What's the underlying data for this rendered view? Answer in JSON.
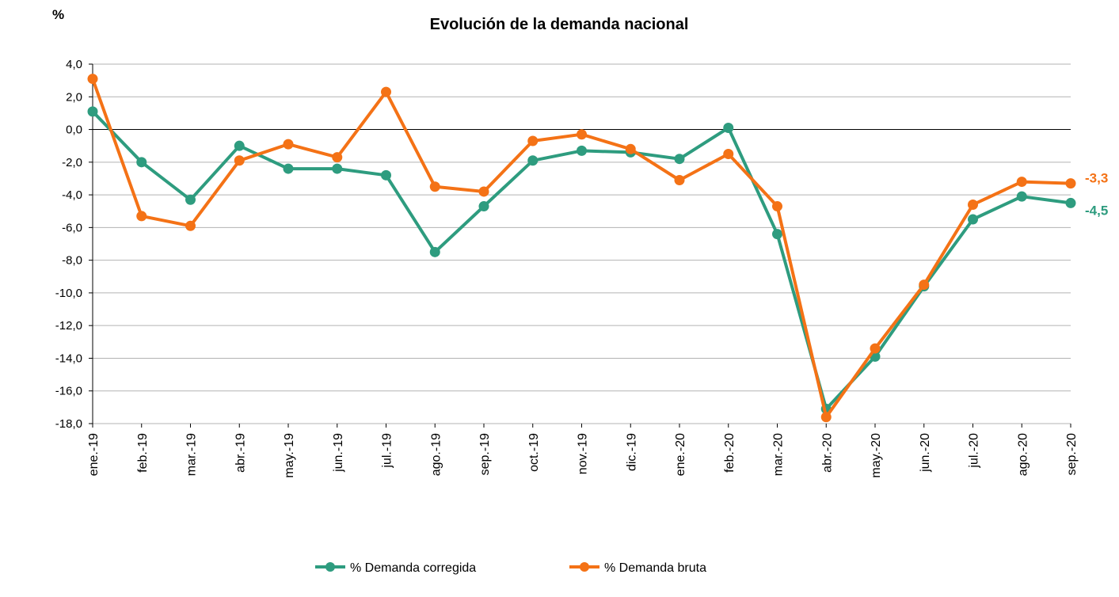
{
  "chart_data": {
    "type": "line",
    "title": "Evolución de la demanda nacional",
    "ylabel": "%",
    "xlabel": "",
    "ylim": [
      -18,
      4
    ],
    "ystep": 2,
    "ytick_labels": [
      "4,0",
      "2,0",
      "0,0",
      "-2,0",
      "-4,0",
      "-6,0",
      "-8,0",
      "-10,0",
      "-12,0",
      "-14,0",
      "-16,0",
      "-18,0"
    ],
    "categories": [
      "ene.-19",
      "feb.-19",
      "mar.-19",
      "abr.-19",
      "may.-19",
      "jun.-19",
      "jul.-19",
      "ago.-19",
      "sep.-19",
      "oct.-19",
      "nov.-19",
      "dic.-19",
      "ene.-20",
      "feb.-20",
      "mar.-20",
      "abr.-20",
      "may.-20",
      "jun.-20",
      "jul.-20",
      "ago.-20",
      "sep.-20"
    ],
    "grid": "horizontal",
    "legend_position": "bottom",
    "series": [
      {
        "name": "% Demanda corregida",
        "color": "#2e9c7f",
        "values": [
          1.1,
          -2.0,
          -4.3,
          -1.0,
          -2.4,
          -2.4,
          -2.8,
          -7.5,
          -4.7,
          -1.9,
          -1.3,
          -1.4,
          -1.8,
          0.1,
          -6.4,
          -17.1,
          -13.9,
          -9.6,
          -5.5,
          -4.1,
          -4.5
        ],
        "end_label": "-4,5"
      },
      {
        "name": "% Demanda bruta",
        "color": "#f47216",
        "values": [
          3.1,
          -5.3,
          -5.9,
          -1.9,
          -0.9,
          -1.7,
          2.3,
          -3.5,
          -3.8,
          -0.7,
          -0.3,
          -1.2,
          -3.1,
          -1.5,
          -4.7,
          -17.6,
          -13.4,
          -9.5,
          -4.6,
          -3.2,
          -3.3
        ],
        "end_label": "-3,3"
      }
    ]
  }
}
